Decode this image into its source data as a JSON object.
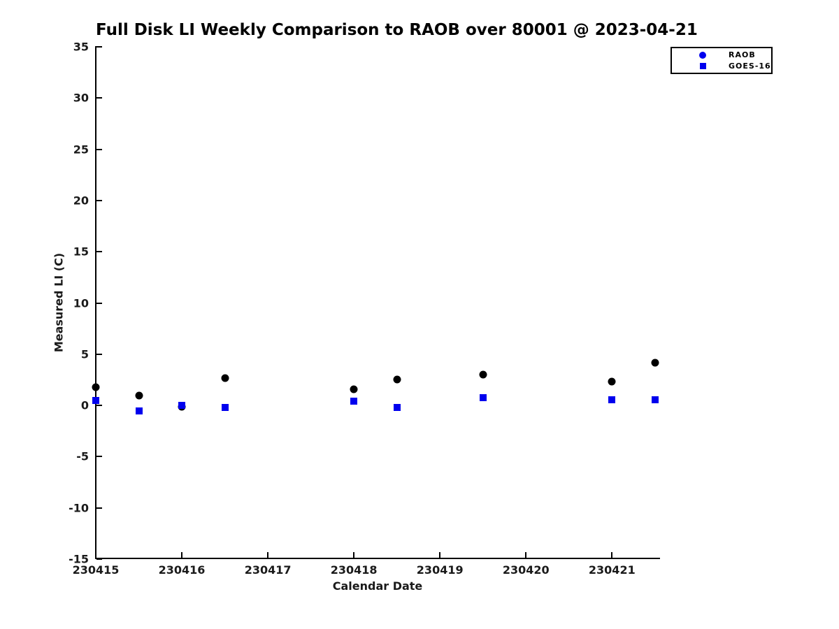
{
  "chart_data": {
    "type": "scatter",
    "title": "Full Disk LI Weekly Comparison to RAOB over 80001 @ 2023-04-21",
    "xlabel": "Calendar Date",
    "ylabel": "Measured LI (C)",
    "xlim": [
      230415,
      230421.55
    ],
    "ylim": [
      -15,
      35
    ],
    "grid": false,
    "legend": {
      "position": "top-right-outside",
      "entries": [
        "RAOB",
        "GOES-16"
      ]
    },
    "xtick_values": [
      230415,
      230416,
      230417,
      230418,
      230419,
      230420,
      230421
    ],
    "xtick_labels": [
      "230415",
      "230416",
      "230417",
      "230418",
      "230419",
      "230420",
      "230421"
    ],
    "ytick_values": [
      35,
      30,
      25,
      20,
      15,
      10,
      5,
      0,
      -5,
      -10,
      -15
    ],
    "ytick_labels": [
      "35",
      "30",
      "25",
      "20",
      "15",
      "10",
      "5",
      "0",
      "-5",
      "-10",
      "-15"
    ],
    "series": [
      {
        "name": "RAOB",
        "marker": "circle",
        "color": "#000000",
        "legend_marker_color": "#0000EE",
        "x": [
          230415,
          230415.5,
          230416,
          230416.5,
          230418,
          230418.5,
          230419.5,
          230421,
          230421.5
        ],
        "y": [
          1.75,
          0.95,
          -0.15,
          2.7,
          1.55,
          2.55,
          3.0,
          2.3,
          4.15
        ]
      },
      {
        "name": "GOES-16",
        "marker": "square",
        "color": "#0000EE",
        "legend_marker_color": "#0000EE",
        "x": [
          230415,
          230415.5,
          230416,
          230416.5,
          230418,
          230418.5,
          230419.5,
          230421,
          230421.5
        ],
        "y": [
          0.5,
          -0.55,
          0.0,
          -0.2,
          0.45,
          -0.2,
          0.75,
          0.55,
          0.55
        ]
      }
    ]
  }
}
